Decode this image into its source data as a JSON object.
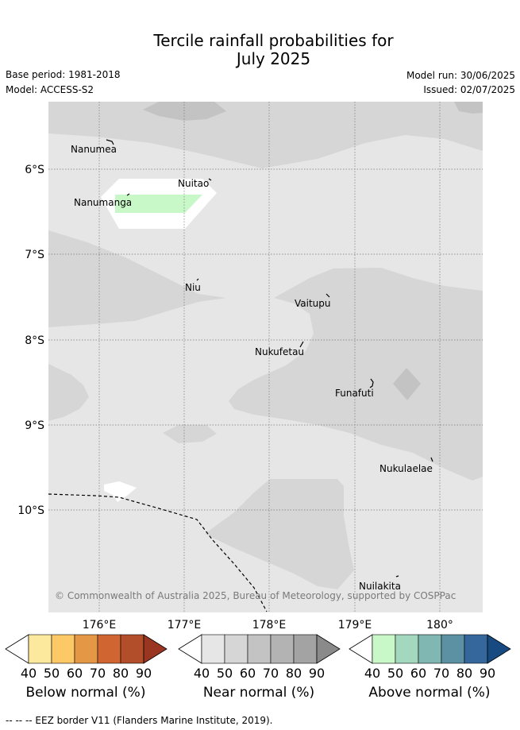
{
  "title_line1": "Tercile rainfall probabilities for",
  "title_line2": "July 2025",
  "base_period": "Base period: 1981-2018",
  "model": "Model: ACCESS-S2",
  "model_run": "Model run: 30/06/2025",
  "issued": "Issued: 02/07/2025",
  "lat_ticks": [
    "6°S",
    "7°S",
    "8°S",
    "9°S",
    "10°S"
  ],
  "lon_ticks": [
    "176°E",
    "177°E",
    "178°E",
    "179°E",
    "180°"
  ],
  "places": {
    "nanumea": "Nanumea",
    "nuitao": "Nuitao",
    "nanumanga": "Nanumanga",
    "niu": "Niu",
    "vaitupu": "Vaitupu",
    "nukufetau": "Nukufetau",
    "funafuti": "Funafuti",
    "nukulaelae": "Nukulaelae",
    "nuilakita": "Nuilakita"
  },
  "copyright": "© Commonwealth of Australia 2025, Bureau of Meteorology, supported by COSPPac",
  "colorbars": {
    "below": {
      "title": "Below normal (%)",
      "labels": [
        "40",
        "50",
        "60",
        "70",
        "80",
        "90"
      ],
      "colors": [
        "#ffffff",
        "#fde99d",
        "#fdc966",
        "#e49744",
        "#d06531",
        "#b24e2a",
        "#9a3522"
      ]
    },
    "near": {
      "title": "Near normal (%)",
      "labels": [
        "40",
        "50",
        "60",
        "70",
        "80",
        "90"
      ],
      "colors": [
        "#ffffff",
        "#e6e6e6",
        "#d6d6d6",
        "#c3c3c3",
        "#b3b3b3",
        "#a3a3a3",
        "#8a8a8a"
      ]
    },
    "above": {
      "title": "Above normal (%)",
      "labels": [
        "40",
        "50",
        "60",
        "70",
        "80",
        "90"
      ],
      "colors": [
        "#ffffff",
        "#c8f8c8",
        "#a3d8bf",
        "#80b7b3",
        "#5b91a3",
        "#35679c",
        "#184a82"
      ]
    }
  },
  "footer": "--  --  -- EEZ border V11 (Flanders Marine Institute, 2019)."
}
